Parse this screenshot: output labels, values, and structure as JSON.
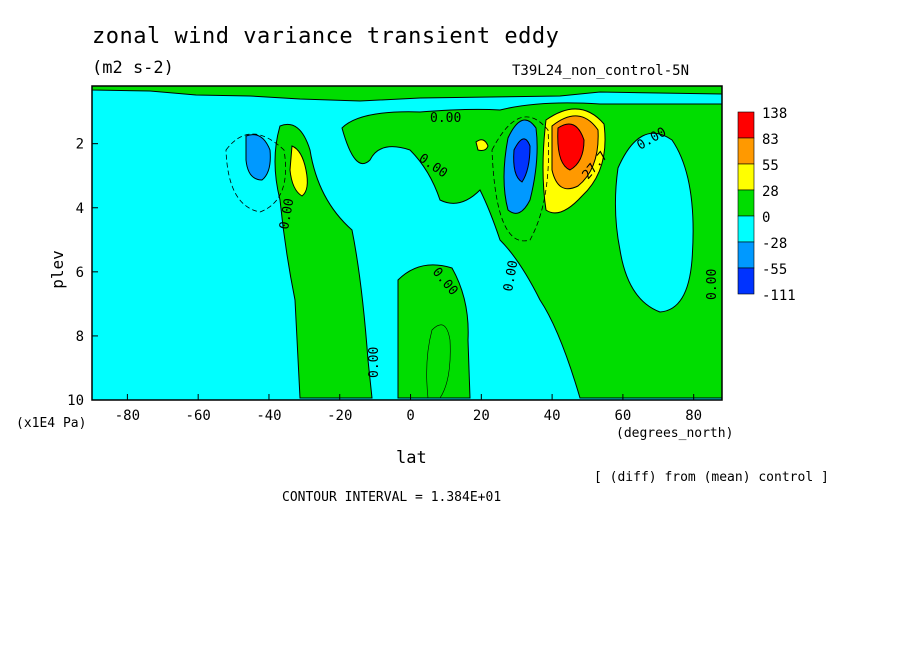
{
  "header": {
    "title": "zonal wind variance transient eddy",
    "units": "(m2 s-2)",
    "run_name": "T39L24_non_control-5N"
  },
  "footer": {
    "diff_note": "[ (diff) from (mean) control ]",
    "contour_interval": "CONTOUR INTERVAL = 1.384E+01"
  },
  "chart_data": {
    "type": "heatmap",
    "title": "zonal wind variance transient eddy",
    "xlabel": "lat",
    "x_unit": "(degrees_north)",
    "ylabel": "plev",
    "y_unit": "(x1E4 Pa)",
    "xlim": [
      -90,
      88
    ],
    "ylim": [
      10,
      0.2
    ],
    "x_ticks": [
      "-80",
      "-60",
      "-40",
      "-20",
      "0",
      "20",
      "40",
      "60",
      "80"
    ],
    "y_ticks": [
      "2",
      "4",
      "6",
      "8",
      "10"
    ],
    "colorbar": {
      "levels": [
        "138",
        "83",
        "55",
        "28",
        "0",
        "-28",
        "-55",
        "-111"
      ],
      "colors": [
        "#ff0000",
        "#ff9900",
        "#ffff00",
        "#00dd00",
        "#00ffff",
        "#0099ff",
        "#0033ff"
      ]
    },
    "contour_labels": [
      "0.00",
      "0.00",
      "0.00",
      "0.00",
      "0.00",
      "0.00",
      "0.00",
      "0.00",
      "27.7"
    ],
    "features": [
      {
        "name": "negative anomaly",
        "lat": -41,
        "plev": 2.3,
        "class": "-55"
      },
      {
        "name": "positive anomaly",
        "lat": -31,
        "plev": 2.9,
        "class": "28"
      },
      {
        "name": "negative anomaly",
        "lat": 32,
        "plev": 2.7,
        "class": "-55"
      },
      {
        "name": "positive maximum",
        "lat": 45,
        "plev": 2.0,
        "class": "138"
      }
    ]
  },
  "colors": {
    "red": "#ff0000",
    "orange": "#ff9900",
    "yellow": "#ffff00",
    "green": "#00dd00",
    "cyan": "#00ffff",
    "light_blue": "#0099ff",
    "blue": "#0033ff"
  }
}
